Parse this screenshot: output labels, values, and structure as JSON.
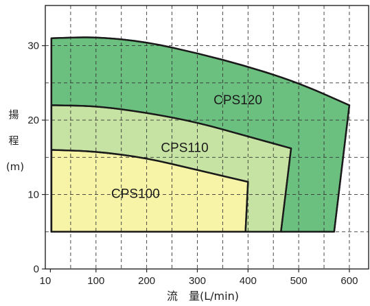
{
  "chart_data": {
    "type": "area",
    "xlabel_chars": [
      "流",
      "量(L/min)"
    ],
    "ylabel_chars": [
      "揚",
      "程",
      "(m)"
    ],
    "x_ticks": [
      {
        "label": "10",
        "value": 10
      },
      {
        "label": "100",
        "value": 100
      },
      {
        "label": "200",
        "value": 200
      },
      {
        "label": "300",
        "value": 300
      },
      {
        "label": "400",
        "value": 400
      },
      {
        "label": "500",
        "value": 500
      },
      {
        "label": "600",
        "value": 600
      }
    ],
    "y_ticks": [
      {
        "label": "0",
        "value": 0
      },
      {
        "label": "10",
        "value": 10
      },
      {
        "label": "20",
        "value": 20
      },
      {
        "label": "30",
        "value": 30
      }
    ],
    "xlim": [
      0,
      638
    ],
    "ylim": [
      0,
      35.4
    ],
    "x_grid": [
      50,
      150,
      250,
      350,
      450,
      550
    ],
    "y_grid": [
      5,
      15,
      25
    ],
    "grid": "dashed",
    "series": [
      {
        "name": "CPS120",
        "color": "#6bbf7f",
        "label_at": [
          380,
          22.6
        ],
        "curve": [
          [
            12,
            31
          ],
          [
            100,
            31.2
          ],
          [
            200,
            30.5
          ],
          [
            300,
            29
          ],
          [
            400,
            27.2
          ],
          [
            500,
            25
          ],
          [
            600,
            22
          ]
        ],
        "right_edge": [
          [
            600,
            22
          ],
          [
            570,
            5
          ]
        ],
        "bottom": 5
      },
      {
        "name": "CPS110",
        "color": "#c6e3a3",
        "label_at": [
          275,
          16.2
        ],
        "curve": [
          [
            12,
            22
          ],
          [
            100,
            21.9
          ],
          [
            200,
            21
          ],
          [
            300,
            19.7
          ],
          [
            400,
            17.8
          ],
          [
            485,
            16.2
          ]
        ],
        "right_edge": [
          [
            485,
            16.2
          ],
          [
            465,
            5
          ]
        ],
        "bottom": 5
      },
      {
        "name": "CPS100",
        "color": "#f7f4a8",
        "label_at": [
          178,
          10
        ],
        "curve": [
          [
            12,
            16
          ],
          [
            100,
            15.8
          ],
          [
            200,
            14.9
          ],
          [
            300,
            13.3
          ],
          [
            400,
            11.7
          ]
        ],
        "right_edge": [
          [
            400,
            11.7
          ],
          [
            395,
            5
          ]
        ],
        "bottom": 5
      }
    ]
  }
}
